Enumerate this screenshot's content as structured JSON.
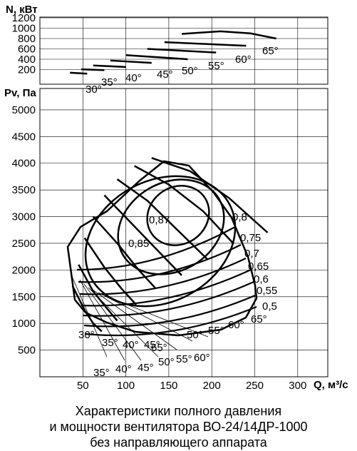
{
  "chart_data": {
    "type": "line",
    "caption": [
      "Характеристики полного давления",
      "и мощности вентилятора ВО-24/14ДР-1000",
      "без направляющего аппарата"
    ],
    "power_panel": {
      "ylabel": "N, кВт",
      "yticks": [
        200,
        400,
        600,
        800,
        1000,
        1200
      ],
      "ylim": [
        0,
        1300
      ],
      "series": [
        {
          "name": "30°",
          "x": [
            35,
            55
          ],
          "y": [
            140,
            120
          ]
        },
        {
          "name": "35°",
          "x": [
            48,
            75
          ],
          "y": [
            205,
            190
          ]
        },
        {
          "name": "40°",
          "x": [
            62,
            100
          ],
          "y": [
            280,
            250
          ]
        },
        {
          "name": "45°",
          "x": [
            82,
            130
          ],
          "y": [
            375,
            330
          ]
        },
        {
          "name": "50°",
          "x": [
            100,
            172
          ],
          "y": [
            480,
            400
          ]
        },
        {
          "name": "55°",
          "x": [
            125,
            205
          ],
          "y": [
            600,
            530
          ]
        },
        {
          "name": "60°",
          "x": [
            145,
            240
          ],
          "y": [
            730,
            660
          ]
        },
        {
          "name": "65°",
          "x": [
            165,
            210,
            245,
            275
          ],
          "y": [
            890,
            940,
            900,
            800
          ]
        }
      ]
    },
    "pressure_panel": {
      "ylabel": "Pv, Па",
      "xlabel": "Q, м³/с",
      "xticks": [
        50,
        100,
        150,
        200,
        250,
        300
      ],
      "yticks": [
        500,
        1000,
        1500,
        2000,
        2500,
        3000,
        3500,
        4000,
        4500,
        5000
      ],
      "xlim": [
        0,
        335
      ],
      "ylim": [
        0,
        5400
      ],
      "blade_angle_labels": [
        "30°",
        "35°",
        "40°",
        "45°",
        "50°",
        "55°",
        "60°",
        "65°"
      ],
      "efficiency_labels": [
        "0,87",
        "0,85",
        "0,8",
        "0,75",
        "0,7",
        "0,65",
        "0,6",
        "0,55",
        "0,5"
      ],
      "pressure_curves": [
        {
          "name": "30°",
          "x": [
            38,
            52,
            62,
            72
          ],
          "y": [
            1700,
            1250,
            1000,
            850
          ]
        },
        {
          "name": "35°",
          "x": [
            45,
            62,
            77,
            90
          ],
          "y": [
            2100,
            1600,
            1300,
            1050
          ]
        },
        {
          "name": "40°",
          "x": [
            52,
            75,
            95,
            112
          ],
          "y": [
            2600,
            2050,
            1650,
            1350
          ]
        },
        {
          "name": "45°",
          "x": [
            62,
            90,
            115,
            135
          ],
          "y": [
            3000,
            2500,
            2000,
            1650
          ]
        },
        {
          "name": "50°",
          "x": [
            75,
            105,
            135,
            165
          ],
          "y": [
            3400,
            2900,
            2400,
            1900
          ]
        },
        {
          "name": "55°",
          "x": [
            90,
            125,
            160,
            195
          ],
          "y": [
            3700,
            3300,
            2750,
            2200
          ]
        },
        {
          "name": "60°",
          "x": [
            110,
            150,
            190,
            225
          ],
          "y": [
            3950,
            3600,
            3100,
            2500
          ]
        },
        {
          "name": "65°",
          "x": [
            130,
            175,
            220,
            265
          ],
          "y": [
            4100,
            3850,
            3350,
            2700
          ]
        }
      ],
      "efficiency_contours": [
        {
          "name": "0,87",
          "x": [
            130,
            175,
            155,
            130
          ],
          "y": [
            3100,
            3600,
            2800,
            3100
          ]
        },
        {
          "name": "0,85",
          "x": [
            95,
            200,
            175,
            95
          ],
          "y": [
            2650,
            3950,
            2350,
            2650
          ]
        },
        {
          "name": "0,8",
          "x": [
            55,
            240,
            200,
            55
          ],
          "y": [
            2250,
            3000,
            2000,
            2250
          ]
        },
        {
          "name": "0,75",
          "x": [
            265
          ],
          "y": [
            2650
          ]
        },
        {
          "name": "0,7",
          "x": [
            265
          ],
          "y": [
            2300
          ]
        },
        {
          "name": "0,65",
          "x": [
            265
          ],
          "y": [
            1950
          ]
        },
        {
          "name": "0,6",
          "x": [
            265
          ],
          "y": [
            1700
          ]
        },
        {
          "name": "0,55",
          "x": [
            265
          ],
          "y": [
            1450
          ]
        },
        {
          "name": "0,5",
          "x": [
            265
          ],
          "y": [
            1250
          ]
        }
      ]
    }
  }
}
